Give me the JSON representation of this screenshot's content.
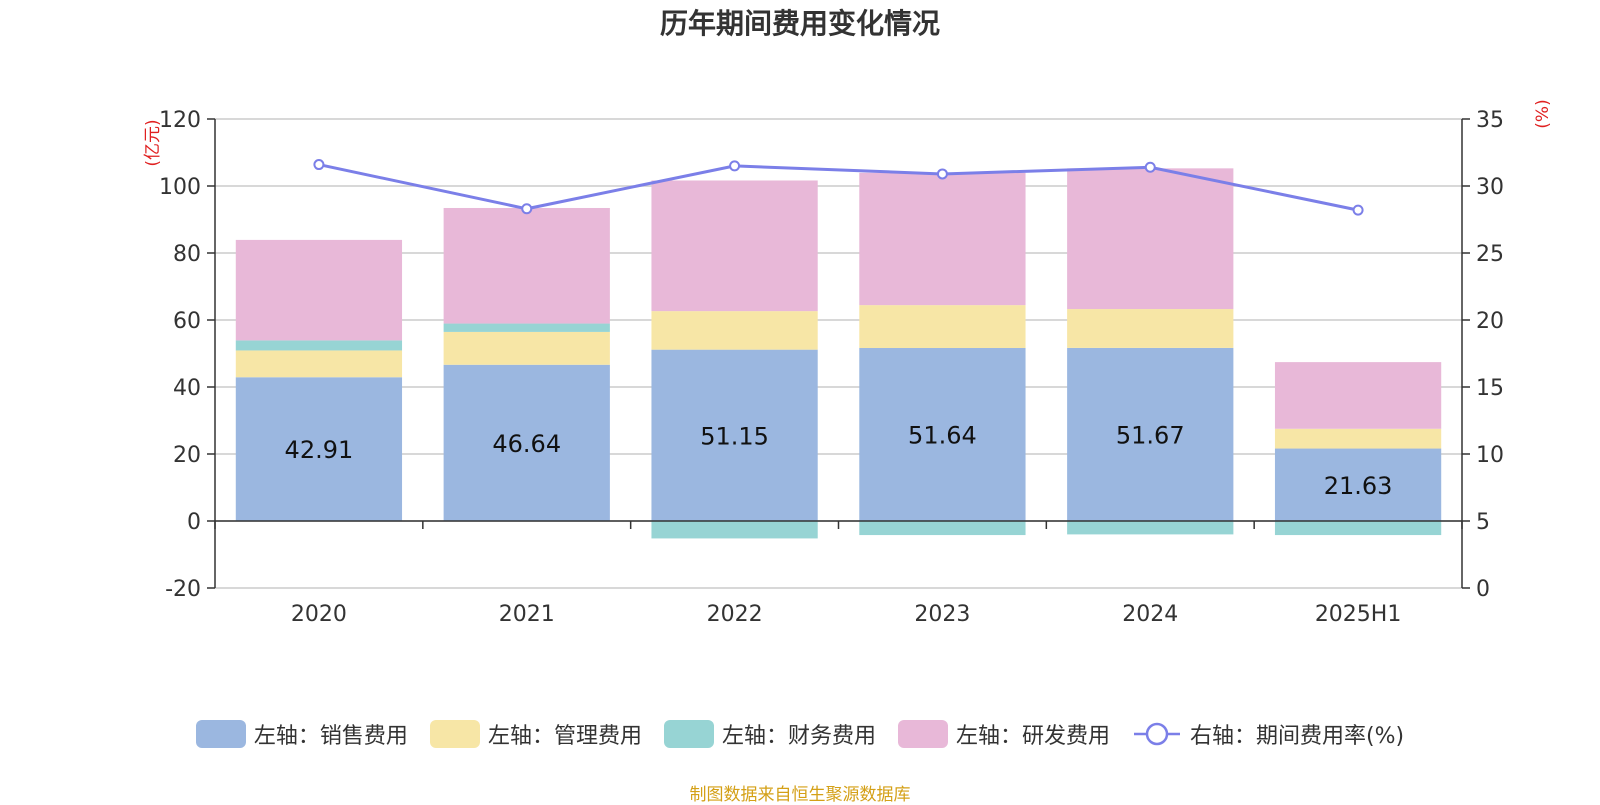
{
  "chart_data": {
    "type": "bar",
    "title": "历年期间费用变化情况",
    "categories": [
      "2020",
      "2021",
      "2022",
      "2023",
      "2024",
      "2025H1"
    ],
    "left_axis": {
      "unit_label": "(亿元)",
      "ylim": [
        -20,
        120
      ],
      "ticks": [
        "-20",
        "0",
        "20",
        "40",
        "60",
        "80",
        "100",
        "120"
      ]
    },
    "right_axis": {
      "unit_label": "(%)",
      "ylim": [
        0,
        35
      ],
      "ticks": [
        "0",
        "5",
        "10",
        "15",
        "20",
        "25",
        "30",
        "35"
      ]
    },
    "series": [
      {
        "name": "左轴：销售费用",
        "type": "bar",
        "axis": "left",
        "stack": true,
        "color": "#9bb7e0",
        "values": [
          42.91,
          46.64,
          51.15,
          51.64,
          51.67,
          21.63
        ],
        "labels": [
          "42.91",
          "46.64",
          "51.15",
          "51.64",
          "51.67",
          "21.63"
        ]
      },
      {
        "name": "左轴：管理费用",
        "type": "bar",
        "axis": "left",
        "stack": true,
        "color": "#f7e6a6",
        "values": [
          8.0,
          9.8,
          11.5,
          12.8,
          11.6,
          5.9
        ]
      },
      {
        "name": "左轴：财务费用",
        "type": "bar",
        "axis": "left",
        "stack": true,
        "color": "#97d4d4",
        "values": [
          3.0,
          2.5,
          -5.2,
          -4.2,
          -4.0,
          -4.2
        ]
      },
      {
        "name": "左轴：研发费用",
        "type": "bar",
        "axis": "left",
        "stack": true,
        "color": "#e8b8d8",
        "values": [
          30.0,
          34.5,
          39.0,
          39.5,
          42.0,
          19.9
        ]
      },
      {
        "name": "右轴：期间费用率(%)",
        "type": "line",
        "axis": "right",
        "color": "#7b7fe8",
        "values": [
          31.6,
          28.3,
          31.5,
          30.9,
          31.4,
          28.2
        ]
      }
    ],
    "grid": true,
    "legend_position": "bottom"
  },
  "source_note": "制图数据来自恒生聚源数据库"
}
